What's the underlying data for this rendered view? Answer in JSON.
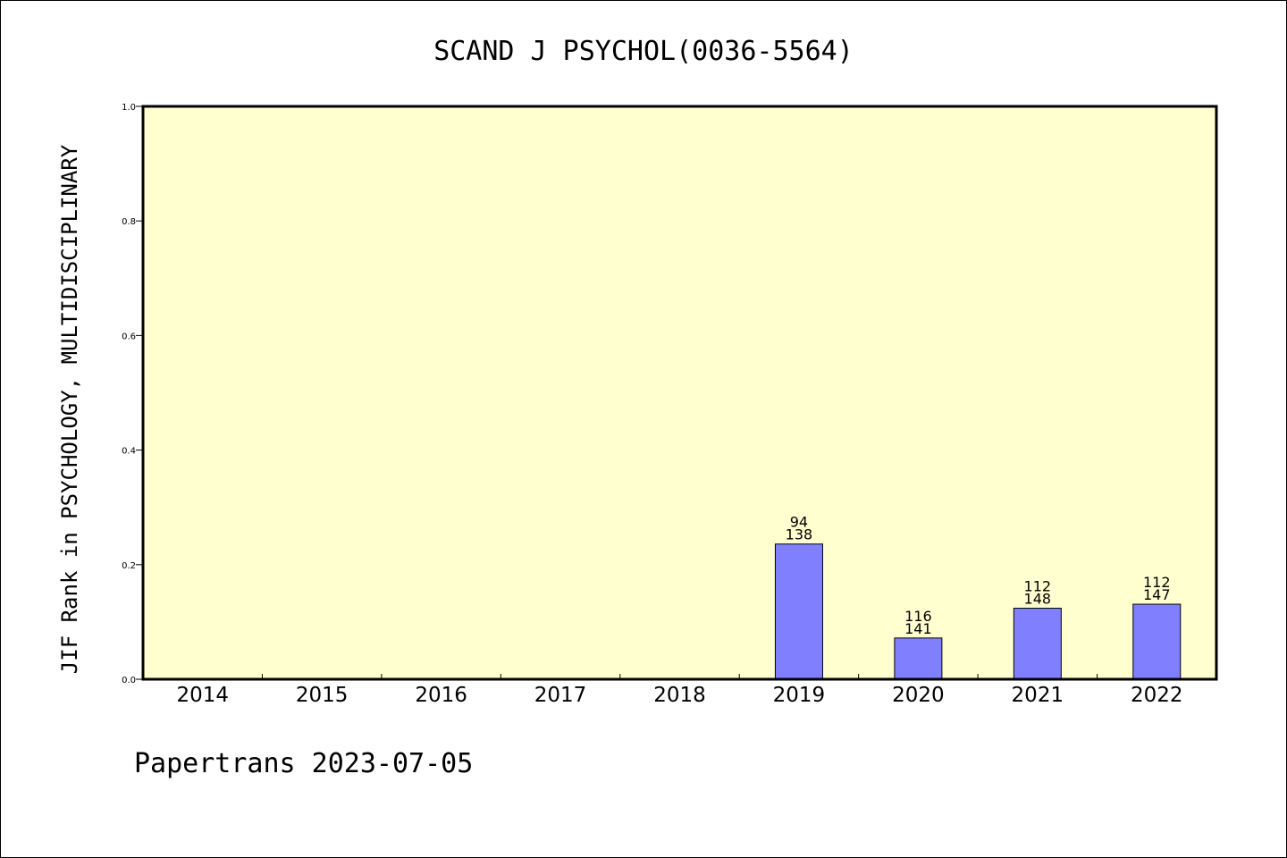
{
  "chart_data": {
    "type": "bar",
    "title": "SCAND J PSYCHOL(0036-5564)",
    "ylabel": "JIF Rank in PSYCHOLOGY, MULTIDISCIPLINARY",
    "xlabel": "",
    "categories": [
      "2014",
      "2015",
      "2016",
      "2017",
      "2018",
      "2019",
      "2020",
      "2021",
      "2022"
    ],
    "values": [
      null,
      null,
      null,
      null,
      null,
      0.236,
      0.072,
      0.124,
      0.131
    ],
    "rank_labels": [
      null,
      null,
      null,
      null,
      null,
      [
        "94",
        "138"
      ],
      [
        "116",
        "141"
      ],
      [
        "112",
        "148"
      ],
      [
        "112",
        "147"
      ]
    ],
    "ylim": [
      0,
      1.0
    ],
    "yticks": [
      "0.0",
      "0.2",
      "0.4",
      "0.6",
      "0.8",
      "1.0"
    ],
    "grid": false,
    "colors": {
      "plot_background": "#ffffd0",
      "bar": "#8080ff"
    }
  },
  "footer": "Papertrans 2023-07-05"
}
